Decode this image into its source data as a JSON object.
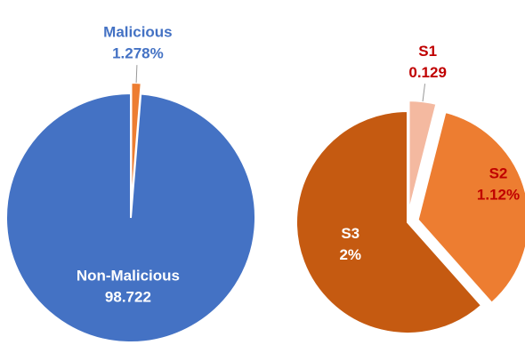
{
  "chart_data": [
    {
      "type": "pie",
      "categories": [
        "Malicious",
        "Non-Malicious"
      ],
      "values": [
        1.278,
        98.722
      ],
      "value_labels": [
        "1.278%",
        "98.722"
      ],
      "colors": [
        "#ed7d31",
        "#4472c4"
      ]
    },
    {
      "type": "pie",
      "categories": [
        "S1",
        "S2",
        "S3"
      ],
      "values": [
        0.129,
        1.12,
        2
      ],
      "value_labels": [
        "0.129",
        "1.12%",
        "2%"
      ],
      "colors": [
        "#f4b9a0",
        "#ed7d31",
        "#c55a11"
      ]
    }
  ]
}
